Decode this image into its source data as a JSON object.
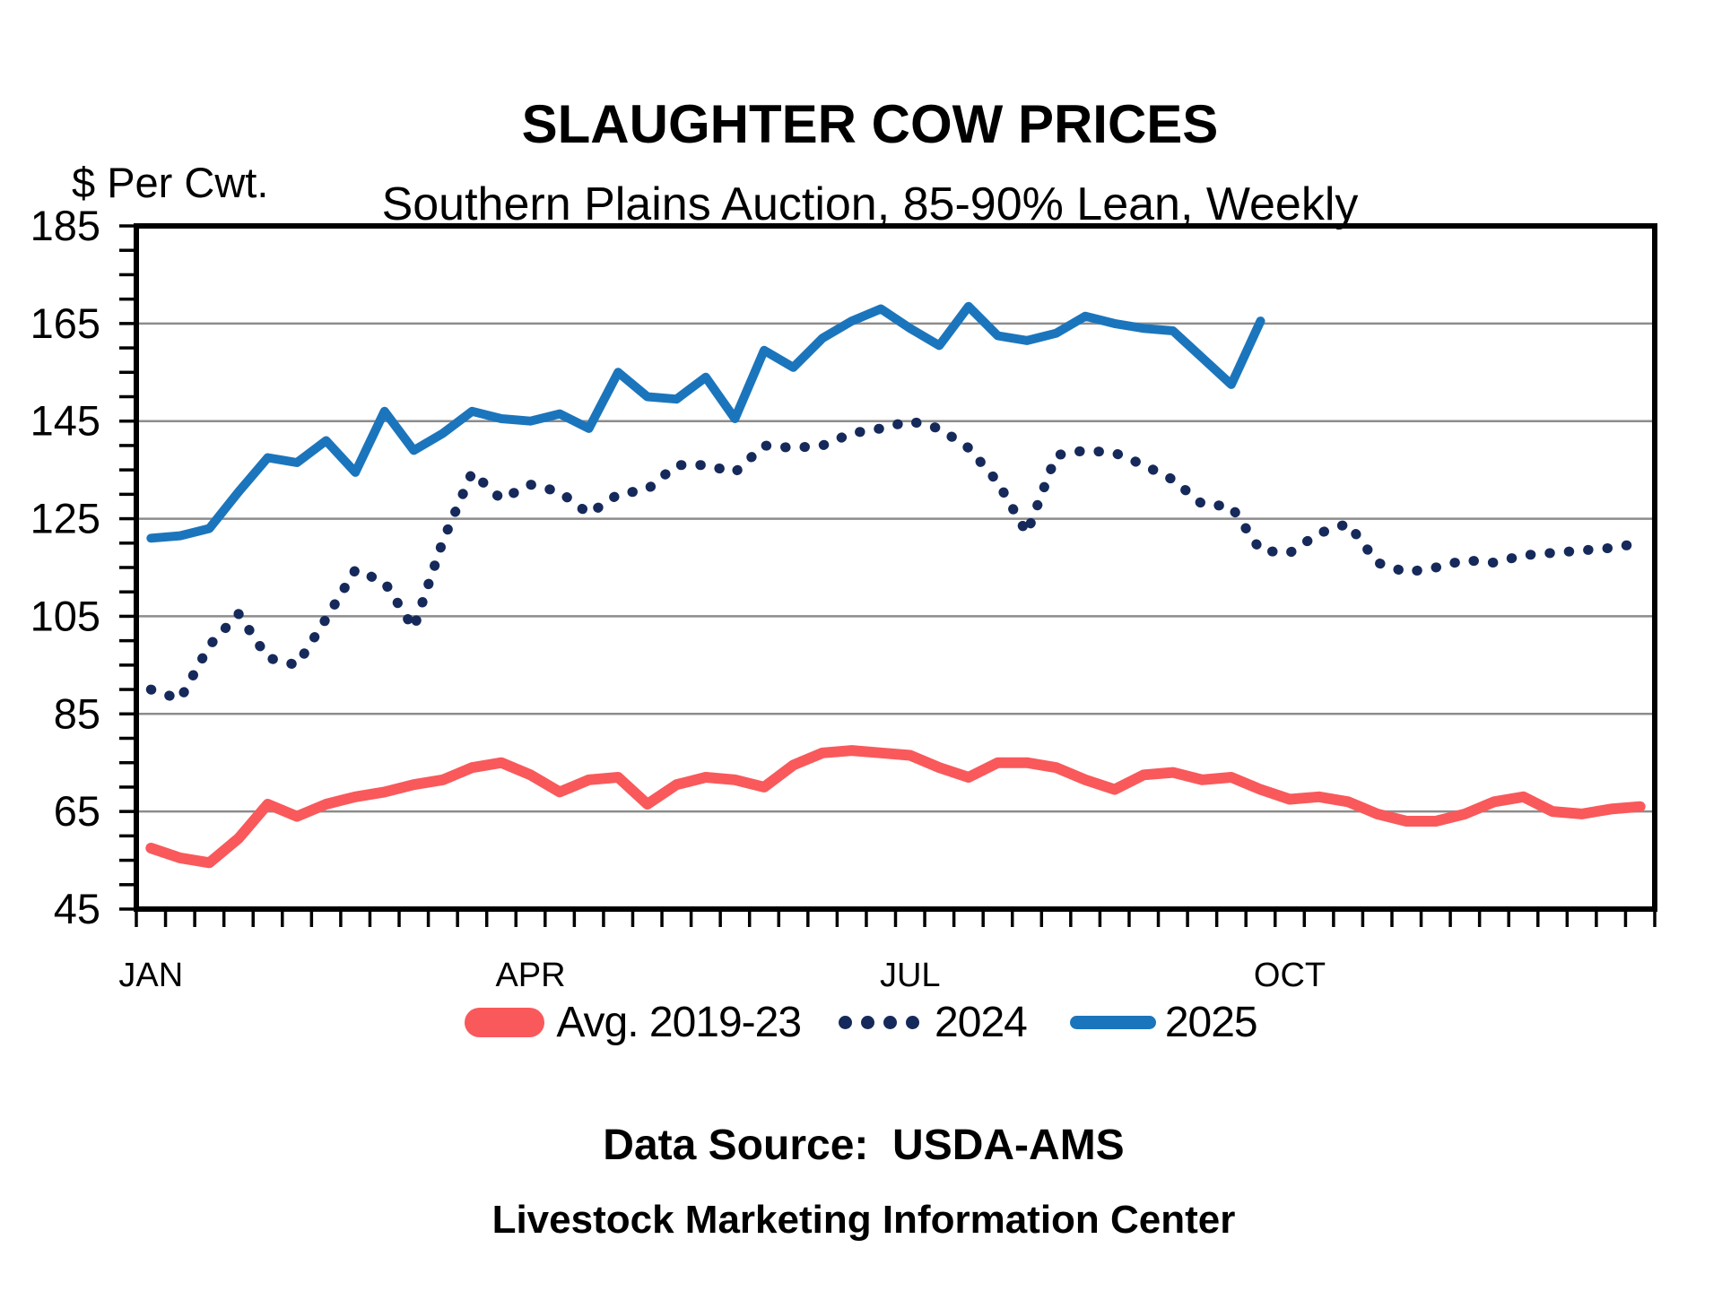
{
  "header": {
    "title": "SLAUGHTER COW PRICES",
    "subtitle": "Southern Plains Auction, 85-90% Lean, Weekly"
  },
  "y_axis_unit": "$ Per Cwt.",
  "footer": {
    "source_line": "Data Source:  USDA-AMS",
    "credit_line": "Livestock Marketing Information Center"
  },
  "chart_data": {
    "type": "line",
    "title": "SLAUGHTER COW PRICES",
    "subtitle": "Southern Plains Auction, 85-90% Lean, Weekly",
    "ylabel": "$ Per Cwt.",
    "ylim": [
      45,
      185
    ],
    "y_major_step": 20,
    "y_minor_step": 5,
    "y_tick_labels": [
      185,
      165,
      145,
      125,
      105,
      85,
      65,
      45
    ],
    "x_weeks": 52,
    "x_tick_labels": [
      {
        "label": "JAN",
        "week": 1
      },
      {
        "label": "APR",
        "week": 14
      },
      {
        "label": "JUL",
        "week": 27
      },
      {
        "label": "OCT",
        "week": 40
      }
    ],
    "grid": "horizontal-gray",
    "legend_position": "bottom",
    "axis_color": "#000000",
    "grid_color": "#8C8C8C",
    "series": [
      {
        "name": "Avg. 2019-23",
        "style": "solid",
        "color": "#F9595B",
        "line_width": 12,
        "values": [
          57.5,
          55.5,
          54.5,
          59.5,
          66.5,
          64,
          66.5,
          68,
          69,
          70.5,
          71.5,
          74,
          75,
          72.5,
          69,
          71.5,
          72,
          66.5,
          70.5,
          72,
          71.5,
          70,
          74.5,
          77,
          77.5,
          77,
          76.5,
          74,
          72,
          75,
          75,
          74,
          71.5,
          69.5,
          72.5,
          73,
          71.5,
          72,
          69.5,
          67.5,
          68,
          67,
          64.5,
          63,
          63,
          64.5,
          67,
          68,
          65,
          64.5,
          65.5,
          66
        ]
      },
      {
        "name": "2024",
        "style": "dotted",
        "color": "#16295B",
        "line_width": 11,
        "values": [
          90,
          88,
          99,
          105.5,
          96.5,
          95,
          104.5,
          114.5,
          112,
          102.5,
          120.5,
          134.5,
          129,
          132,
          130.5,
          126,
          130,
          131,
          136,
          136,
          134.5,
          140,
          139.5,
          140,
          142.5,
          143.5,
          145,
          143.5,
          139.5,
          132.5,
          122,
          138,
          139,
          138.5,
          136,
          133,
          128,
          127.5,
          118.5,
          118,
          122,
          124,
          116,
          114,
          115,
          116.5,
          116,
          117.5,
          118,
          118.5,
          119,
          120
        ]
      },
      {
        "name": "2025",
        "style": "solid",
        "color": "#1B75BC",
        "line_width": 10,
        "values": [
          121,
          121.5,
          123,
          130.5,
          137.5,
          136.5,
          141,
          134.5,
          147,
          139,
          142.5,
          147,
          145.5,
          145,
          146.5,
          143.5,
          155,
          150,
          149.5,
          154,
          145.5,
          159.5,
          156,
          162,
          165.5,
          168,
          164,
          160.5,
          168.5,
          162.5,
          161.5,
          163,
          166.5,
          165,
          164,
          163.5,
          158,
          152.5,
          165.5
        ]
      }
    ]
  }
}
